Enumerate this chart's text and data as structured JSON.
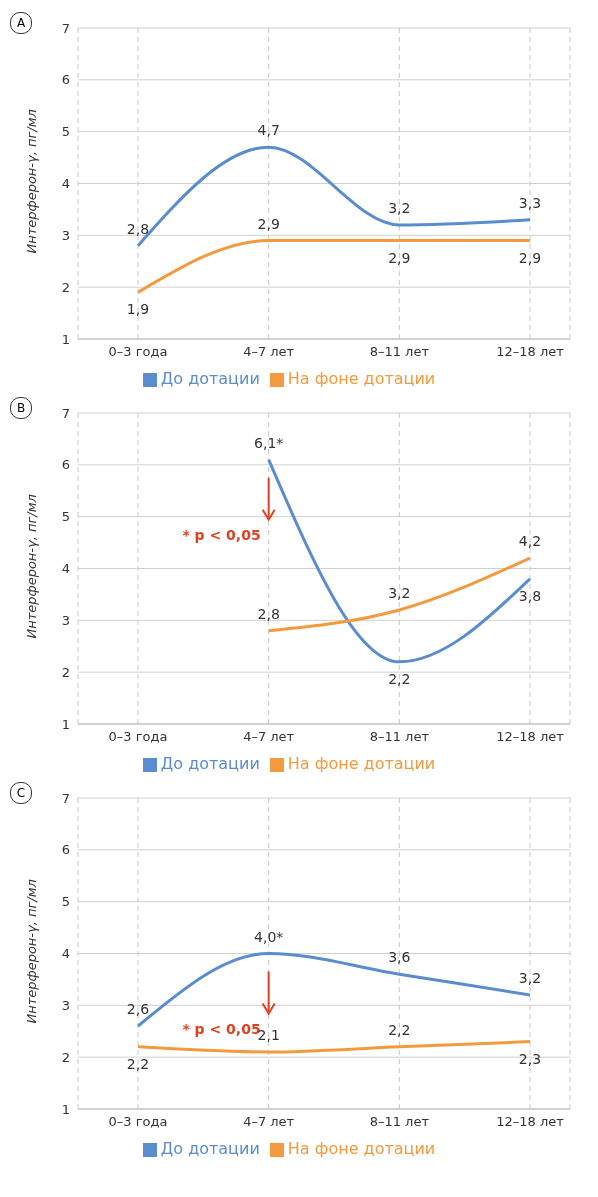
{
  "chart_data": [
    {
      "type": "line",
      "title": "A",
      "ylabel": "Интерферон-γ, пг/мл",
      "categories": [
        "0–3 года",
        "4–7 лет",
        "8–11 лет",
        "12–18 лет"
      ],
      "ylim": [
        1,
        7
      ],
      "yticks": [
        1,
        2,
        3,
        4,
        5,
        6,
        7
      ],
      "grid": true,
      "legend": "bottom",
      "marker": "none",
      "line_style": "solid",
      "series": [
        {
          "name": "До дотации",
          "color": "#5b8ccf",
          "values": [
            2.8,
            4.7,
            3.2,
            3.3
          ],
          "value_labels": [
            "2,8",
            "4,7",
            "3,2",
            "3,3"
          ]
        },
        {
          "name": "На фоне дотации",
          "color": "#f39a3e",
          "values": [
            1.9,
            2.9,
            2.9,
            2.9
          ],
          "value_labels": [
            "1,9",
            "2,9",
            "2,9",
            "2,9"
          ]
        }
      ]
    },
    {
      "type": "line",
      "title": "B",
      "ylabel": "Интерферон-γ, пг/мл",
      "categories": [
        "0–3 года",
        "4–7 лет",
        "8–11 лет",
        "12–18 лет"
      ],
      "ylim": [
        1,
        7
      ],
      "yticks": [
        1,
        2,
        3,
        4,
        5,
        6,
        7
      ],
      "grid": true,
      "legend": "bottom",
      "marker": "none",
      "line_style": "solid",
      "annotations": [
        "* p < 0,05"
      ],
      "series": [
        {
          "name": "До дотации",
          "color": "#5b8ccf",
          "values": [
            null,
            6.1,
            2.2,
            3.8
          ],
          "value_labels": [
            null,
            "6,1*",
            "2,2",
            "3,8"
          ]
        },
        {
          "name": "На фоне дотации",
          "color": "#f39a3e",
          "values": [
            null,
            2.8,
            3.2,
            4.2
          ],
          "value_labels": [
            null,
            "2,8",
            "3,2",
            "4,2"
          ]
        }
      ]
    },
    {
      "type": "line",
      "title": "C",
      "ylabel": "Интерферон-γ, пг/мл",
      "categories": [
        "0–3 года",
        "4–7 лет",
        "8–11 лет",
        "12–18 лет"
      ],
      "ylim": [
        1,
        7
      ],
      "yticks": [
        1,
        2,
        3,
        4,
        5,
        6,
        7
      ],
      "grid": true,
      "legend": "bottom",
      "marker": "none",
      "line_style": "solid",
      "annotations": [
        "* p < 0,05"
      ],
      "series": [
        {
          "name": "До дотации",
          "color": "#5b8ccf",
          "values": [
            2.6,
            4.0,
            3.6,
            3.2
          ],
          "value_labels": [
            "2,6",
            "4,0*",
            "3,6",
            "3,2"
          ]
        },
        {
          "name": "На фоне дотации",
          "color": "#f39a3e",
          "values": [
            2.2,
            2.1,
            2.2,
            2.3
          ],
          "value_labels": [
            "2,2",
            "2,1",
            "2,2",
            "2,3"
          ]
        }
      ]
    }
  ]
}
